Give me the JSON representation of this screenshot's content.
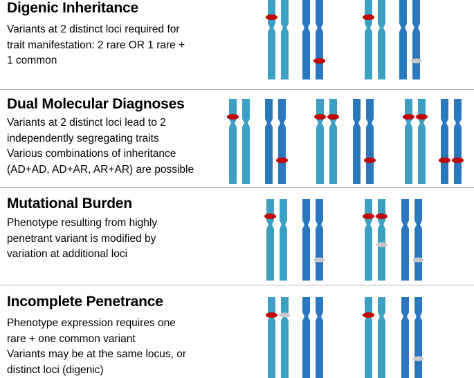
{
  "colors": {
    "chromosome_light": "#3ba0c4",
    "chromosome_dark": "#2a77c0",
    "rare_variant": "#c00000",
    "common_variant": "#c8c8c8",
    "divider": "#b3b3b3"
  },
  "panels": [
    {
      "title": "Digenic Inheritance",
      "lines": [
        "Variants at 2 distinct loci required for",
        "trait manifestation: 2 rare OR 1 rare +",
        "1 common"
      ]
    },
    {
      "title": "Dual Molecular Diagnoses",
      "lines": [
        "Variants at 2 distinct loci lead to 2",
        "independently segregating traits",
        "Various combinations of inheritance",
        "(AD+AD, AD+AR, AR+AR) are possible"
      ]
    },
    {
      "title": "Mutational Burden",
      "lines": [
        "Phenotype resulting from highly",
        "penetrant variant is modified by",
        "variation at additional loci"
      ]
    },
    {
      "title": "Incomplete Penetrance",
      "lines": [
        "Phenotype expression requires one",
        "rare + one common variant",
        "Variants may be at the same locus, or",
        "distinct loci (digenic)"
      ]
    }
  ],
  "chromosome_diagrams": [
    {
      "panel": "Digenic Inheritance",
      "scenarios": [
        {
          "pairs": [
            {
              "shade": "light",
              "chromatids": [
                [
                  "rare"
                ],
                []
              ]
            },
            {
              "shade": "dark",
              "chromatids": [
                [],
                [
                  "rare"
                ]
              ]
            }
          ]
        },
        {
          "pairs": [
            {
              "shade": "light",
              "chromatids": [
                [
                  "rare"
                ],
                []
              ]
            },
            {
              "shade": "dark",
              "chromatids": [
                [],
                [
                  "common"
                ]
              ]
            }
          ]
        }
      ]
    },
    {
      "panel": "Dual Molecular Diagnoses",
      "scenarios": [
        {
          "pairs": [
            {
              "shade": "light",
              "chromatids": [
                [
                  "rare"
                ],
                []
              ]
            },
            {
              "shade": "dark",
              "chromatids": [
                [],
                [
                  "rare"
                ]
              ]
            }
          ]
        },
        {
          "pairs": [
            {
              "shade": "light",
              "chromatids": [
                [
                  "rare"
                ],
                [
                  "rare"
                ]
              ]
            },
            {
              "shade": "dark",
              "chromatids": [
                [],
                [
                  "rare"
                ]
              ]
            }
          ]
        },
        {
          "pairs": [
            {
              "shade": "light",
              "chromatids": [
                [
                  "rare"
                ],
                [
                  "rare"
                ]
              ]
            },
            {
              "shade": "dark",
              "chromatids": [
                [
                  "rare"
                ],
                [
                  "rare"
                ]
              ]
            }
          ]
        }
      ]
    },
    {
      "panel": "Mutational Burden",
      "scenarios": [
        {
          "pairs": [
            {
              "shade": "light",
              "chromatids": [
                [
                  "rare"
                ],
                []
              ]
            },
            {
              "shade": "dark",
              "chromatids": [
                [],
                [
                  "common"
                ]
              ]
            }
          ]
        },
        {
          "pairs": [
            {
              "shade": "light",
              "chromatids": [
                [
                  "rare"
                ],
                [
                  "rare",
                  "common"
                ]
              ]
            },
            {
              "shade": "dark",
              "chromatids": [
                [],
                [
                  "common"
                ]
              ]
            }
          ]
        }
      ]
    },
    {
      "panel": "Incomplete Penetrance",
      "scenarios": [
        {
          "pairs": [
            {
              "shade": "light",
              "chromatids": [
                [
                  "rare"
                ],
                [
                  "common"
                ]
              ]
            },
            {
              "shade": "dark",
              "chromatids": [
                [],
                []
              ]
            }
          ]
        },
        {
          "pairs": [
            {
              "shade": "light",
              "chromatids": [
                [
                  "rare"
                ],
                []
              ]
            },
            {
              "shade": "dark",
              "chromatids": [
                [],
                [
                  "common"
                ]
              ]
            }
          ]
        }
      ]
    }
  ]
}
